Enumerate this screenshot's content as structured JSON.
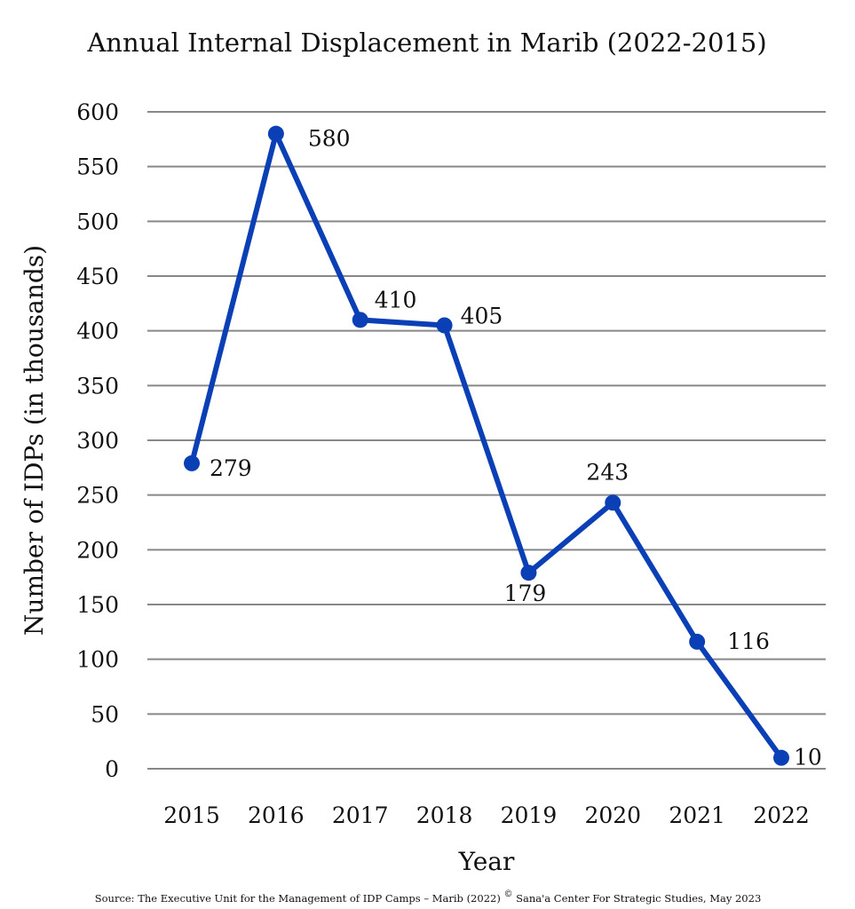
{
  "chart_data": {
    "type": "line",
    "title": "Annual Internal Displacement in Marib (2022-2015)",
    "xlabel": "Year",
    "ylabel": "Number of IDPs (in thousands)",
    "categories": [
      "2015",
      "2016",
      "2017",
      "2018",
      "2019",
      "2020",
      "2021",
      "2022"
    ],
    "series": [
      {
        "name": "IDPs (thousands)",
        "values": [
          279,
          580,
          410,
          405,
          179,
          243,
          116,
          10
        ],
        "color": "#0a3fb5"
      }
    ],
    "data_labels": [
      "279",
      "580",
      "410",
      "405",
      "179",
      "243",
      "116",
      "10"
    ],
    "yticks": [
      0,
      50,
      100,
      150,
      200,
      250,
      300,
      350,
      400,
      450,
      500,
      550,
      600
    ],
    "ylim": [
      0,
      600
    ],
    "grid": true,
    "gridline_color": "#888888",
    "legend": "none",
    "source": "Source: The Executive Unit for the Management of IDP Camps – Marib (2022)",
    "copyright_symbol": "©",
    "credit": "Sana'a Center For Strategic Studies, May 2023"
  }
}
